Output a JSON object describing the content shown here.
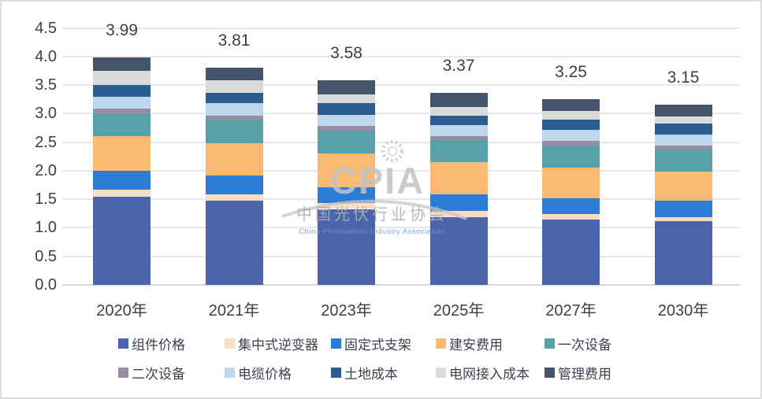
{
  "chart_data": {
    "type": "bar",
    "stacked": true,
    "title": "",
    "xlabel": "",
    "ylabel": "",
    "categories": [
      "2020年",
      "2021年",
      "2023年",
      "2025年",
      "2027年",
      "2030年"
    ],
    "series": [
      {
        "name": "组件价格",
        "color": "#4B64AC",
        "values": [
          1.55,
          1.48,
          1.33,
          1.19,
          1.15,
          1.12
        ]
      },
      {
        "name": "集中式逆变器",
        "color": "#FBDEC1",
        "values": [
          0.12,
          0.11,
          0.11,
          0.1,
          0.09,
          0.07
        ]
      },
      {
        "name": "固定式支架",
        "color": "#2B7CD5",
        "values": [
          0.33,
          0.32,
          0.27,
          0.29,
          0.28,
          0.28
        ]
      },
      {
        "name": "建安费用",
        "color": "#FBBA74",
        "values": [
          0.6,
          0.57,
          0.59,
          0.57,
          0.53,
          0.52
        ]
      },
      {
        "name": "一次设备",
        "color": "#58A1A8",
        "values": [
          0.41,
          0.42,
          0.4,
          0.38,
          0.39,
          0.38
        ]
      },
      {
        "name": "二次设备",
        "color": "#998CA0",
        "values": [
          0.08,
          0.07,
          0.08,
          0.07,
          0.08,
          0.07
        ]
      },
      {
        "name": "电缆价格",
        "color": "#BDD7EE",
        "values": [
          0.21,
          0.22,
          0.2,
          0.2,
          0.2,
          0.19
        ]
      },
      {
        "name": "土地成本",
        "color": "#2B5D90",
        "values": [
          0.2,
          0.17,
          0.21,
          0.17,
          0.17,
          0.2
        ]
      },
      {
        "name": "电网接入成本",
        "color": "#DADADA",
        "values": [
          0.25,
          0.22,
          0.15,
          0.15,
          0.15,
          0.12
        ]
      },
      {
        "name": "管理费用",
        "color": "#44546A",
        "values": [
          0.24,
          0.23,
          0.24,
          0.25,
          0.21,
          0.2
        ]
      }
    ],
    "totals": [
      "3.99",
      "3.81",
      "3.58",
      "3.37",
      "3.25",
      "3.15"
    ],
    "ylim": [
      0,
      4.5
    ],
    "yticks": [
      "0.0",
      "0.5",
      "1.0",
      "1.5",
      "2.0",
      "2.5",
      "3.0",
      "3.5",
      "4.0",
      "4.5"
    ],
    "grid": true,
    "legend_position": "bottom"
  },
  "watermark": {
    "acronym": "CPIA",
    "name_cn": "中国光伏行业协会",
    "name_en": "China Photovoltaic Industry Association"
  },
  "colors": {
    "grid": "#E7E7E7",
    "axis": "#D8D8D8",
    "tick_text": "#3F3F3F",
    "legend_text": "#3C4150",
    "watermark_gray": "#BFBFBF",
    "watermark_blue": "#6F9BD0"
  }
}
